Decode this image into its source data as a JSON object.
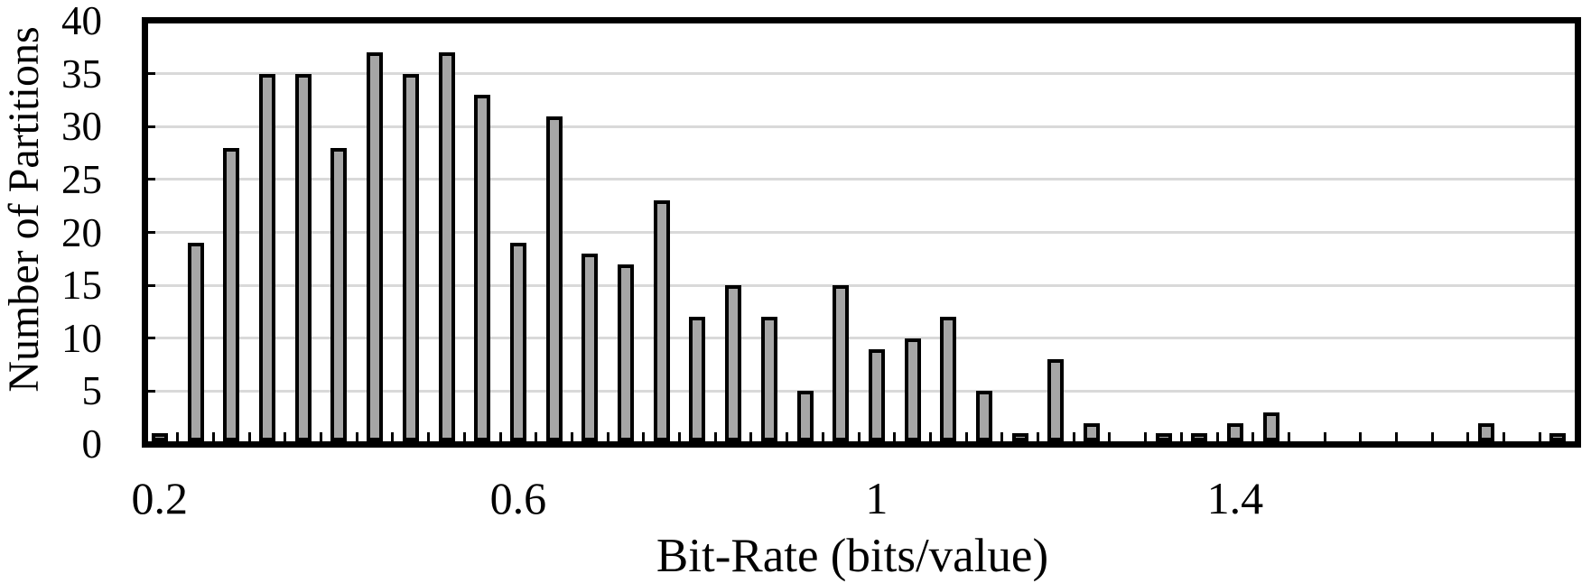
{
  "chart_data": {
    "type": "bar",
    "xlabel": "Bit-Rate (bits/value)",
    "ylabel": "Number of Partitions",
    "bin_width": 0.04,
    "categories": [
      0.2,
      0.24,
      0.28,
      0.32,
      0.36,
      0.4,
      0.44,
      0.48,
      0.52,
      0.56,
      0.6,
      0.64,
      0.68,
      0.72,
      0.76,
      0.8,
      0.84,
      0.88,
      0.92,
      0.96,
      1.0,
      1.04,
      1.08,
      1.12,
      1.16,
      1.2,
      1.24,
      1.28,
      1.32,
      1.36,
      1.4,
      1.44,
      1.48,
      1.52,
      1.56,
      1.6,
      1.64,
      1.68,
      1.72,
      1.76
    ],
    "values": [
      1,
      19,
      28,
      35,
      35,
      28,
      37,
      35,
      37,
      33,
      19,
      31,
      18,
      17,
      23,
      12,
      15,
      12,
      5,
      15,
      9,
      10,
      12,
      5,
      1,
      8,
      2,
      0,
      1,
      1,
      2,
      3,
      0,
      0,
      0,
      0,
      0,
      2,
      0,
      1
    ],
    "ylim": [
      0,
      40
    ],
    "y_ticks": [
      0,
      5,
      10,
      15,
      20,
      25,
      30,
      35,
      40
    ],
    "x_tick_labels": [
      "0.2",
      "0.6",
      "1",
      "1.4"
    ],
    "x_tick_values": [
      0.2,
      0.6,
      1.0,
      1.4
    ],
    "grid": "horizontal",
    "legend": "none",
    "tick_style": "inside",
    "colors": {
      "bar_fill": "#a6a6a6",
      "bar_border": "#000000",
      "gridline": "#d9d9d9",
      "axis": "#000000",
      "text": "#000000"
    }
  }
}
